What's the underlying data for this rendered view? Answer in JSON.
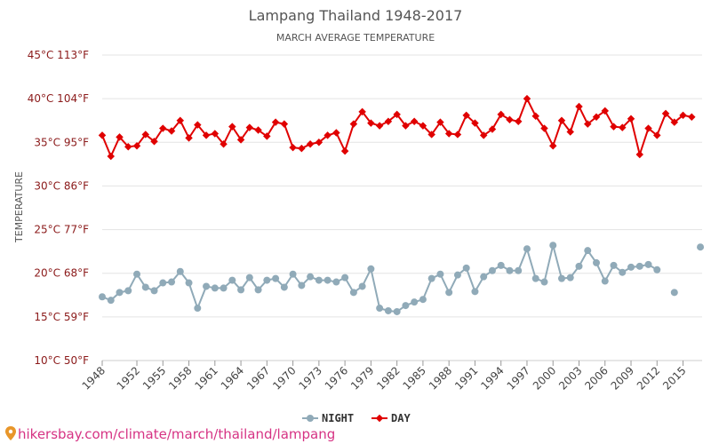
{
  "chart_data": {
    "type": "line",
    "title": "Lampang Thailand 1948-2017",
    "subtitle": "MARCH AVERAGE TEMPERATURE",
    "ylabel": "TEMPERATURE",
    "xlabel": "",
    "yticks": [
      "10°C 50°F",
      "15°C 59°F",
      "20°C 68°F",
      "25°C 77°F",
      "30°C 86°F",
      "35°C 95°F",
      "40°C 104°F",
      "45°C 113°F"
    ],
    "ylim": [
      10,
      45
    ],
    "xticks": [
      "1948",
      "1952",
      "1955",
      "1958",
      "1961",
      "1964",
      "1967",
      "1970",
      "1973",
      "1976",
      "1979",
      "1982",
      "1985",
      "1988",
      "1991",
      "1994",
      "1997",
      "2000",
      "2003",
      "2006",
      "2009",
      "2012",
      "2015"
    ],
    "x": [
      1948,
      1949,
      1950,
      1951,
      1952,
      1953,
      1954,
      1955,
      1956,
      1957,
      1958,
      1959,
      1960,
      1961,
      1962,
      1963,
      1964,
      1965,
      1966,
      1967,
      1968,
      1969,
      1970,
      1971,
      1972,
      1973,
      1974,
      1975,
      1976,
      1977,
      1978,
      1979,
      1980,
      1981,
      1982,
      1983,
      1984,
      1985,
      1986,
      1987,
      1988,
      1989,
      1990,
      1991,
      1992,
      1993,
      1994,
      1995,
      1996,
      1997,
      1998,
      1999,
      2000,
      2001,
      2002,
      2003,
      2004,
      2005,
      2006,
      2007,
      2008,
      2009,
      2010,
      2011,
      2012,
      2013,
      2014,
      2015,
      2016,
      2017
    ],
    "grid": true,
    "legend_position": "bottom",
    "series": [
      {
        "name": "NIGHT",
        "color": "#90aab8",
        "values": [
          17.3,
          16.9,
          17.8,
          18.0,
          19.9,
          18.4,
          18.0,
          18.9,
          19.0,
          20.2,
          18.9,
          16.0,
          18.5,
          18.3,
          18.3,
          19.2,
          18.1,
          19.5,
          18.1,
          19.2,
          19.4,
          18.4,
          19.9,
          18.6,
          19.6,
          19.2,
          19.2,
          19.0,
          19.5,
          17.8,
          18.5,
          20.5,
          16.0,
          15.7,
          15.6,
          16.3,
          16.7,
          17.0,
          19.4,
          19.9,
          17.8,
          19.8,
          20.6,
          17.9,
          19.6,
          20.3,
          20.9,
          20.3,
          20.3,
          22.8,
          19.4,
          19.0,
          23.2,
          19.4,
          19.5,
          20.8,
          22.6,
          21.2,
          19.1,
          20.9,
          20.1,
          20.7,
          20.8,
          21.0,
          20.4,
          null,
          17.8,
          null,
          null,
          23.0
        ]
      },
      {
        "name": "DAY",
        "color": "#e00000",
        "values": [
          35.8,
          33.4,
          35.6,
          34.5,
          34.6,
          35.9,
          35.1,
          36.6,
          36.3,
          37.5,
          35.5,
          37.0,
          35.8,
          36.0,
          34.8,
          36.8,
          35.3,
          36.7,
          36.4,
          35.7,
          37.3,
          37.1,
          34.4,
          34.3,
          34.8,
          35.0,
          35.8,
          36.1,
          34.0,
          37.1,
          38.5,
          37.2,
          36.9,
          37.4,
          38.2,
          36.9,
          37.4,
          36.9,
          35.9,
          37.3,
          36.0,
          35.9,
          38.1,
          37.2,
          35.8,
          36.5,
          38.2,
          37.6,
          37.4,
          40.0,
          38.0,
          36.6,
          34.6,
          37.5,
          36.2,
          39.1,
          37.1,
          37.9,
          38.6,
          36.8,
          36.7,
          37.7,
          33.6,
          36.6,
          35.8,
          38.3,
          37.3,
          38.1,
          37.9,
          null
        ]
      }
    ]
  },
  "footer": {
    "url_text": "hikersbay.com/climate/march/thailand/lampang"
  }
}
